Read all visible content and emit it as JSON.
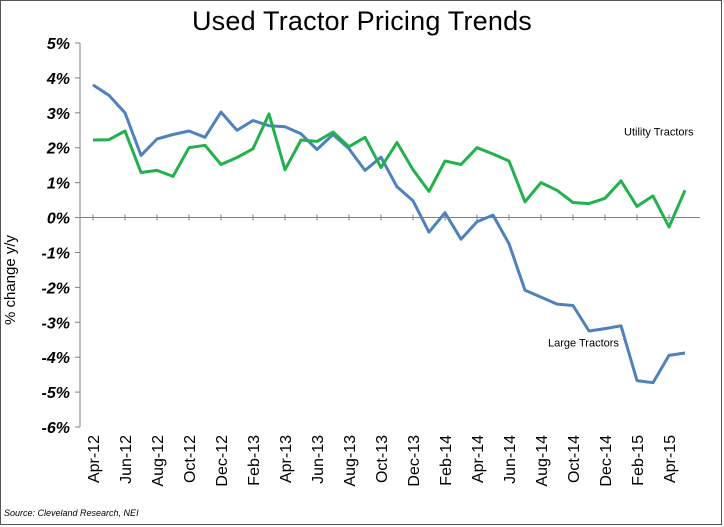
{
  "chart_data": {
    "type": "line",
    "title": "Used Tractor Pricing Trends",
    "ylabel": "% change y/y",
    "xlabel": "",
    "ylim": [
      -6,
      5
    ],
    "yticks": [
      "5%",
      "4%",
      "3%",
      "2%",
      "1%",
      "0%",
      "-1%",
      "-2%",
      "-3%",
      "-4%",
      "-5%",
      "-6%"
    ],
    "ytick_values": [
      5,
      4,
      3,
      2,
      1,
      0,
      -1,
      -2,
      -3,
      -4,
      -5,
      -6
    ],
    "x": [
      "Apr-12",
      "May-12",
      "Jun-12",
      "Jul-12",
      "Aug-12",
      "Sep-12",
      "Oct-12",
      "Nov-12",
      "Dec-12",
      "Jan-13",
      "Feb-13",
      "Mar-13",
      "Apr-13",
      "May-13",
      "Jun-13",
      "Jul-13",
      "Aug-13",
      "Sep-13",
      "Oct-13",
      "Nov-13",
      "Dec-13",
      "Jan-14",
      "Feb-14",
      "Mar-14",
      "Apr-14",
      "May-14",
      "Jun-14",
      "Jul-14",
      "Aug-14",
      "Sep-14",
      "Oct-14",
      "Nov-14",
      "Dec-14",
      "Jan-15",
      "Feb-15",
      "Mar-15",
      "Apr-15",
      "May-15"
    ],
    "xtick_labels": [
      "Apr-12",
      "Jun-12",
      "Aug-12",
      "Oct-12",
      "Dec-12",
      "Feb-13",
      "Apr-13",
      "Jun-13",
      "Aug-13",
      "Oct-13",
      "Dec-13",
      "Feb-14",
      "Apr-14",
      "Jun-14",
      "Aug-14",
      "Oct-14",
      "Dec-14",
      "Feb-15",
      "Apr-15"
    ],
    "series": [
      {
        "name": "Large Tractors",
        "color": "#4F81BD",
        "values": [
          3.8,
          3.5,
          3.0,
          1.78,
          2.25,
          2.38,
          2.48,
          2.3,
          3.02,
          2.5,
          2.78,
          2.63,
          2.6,
          2.4,
          1.95,
          2.38,
          1.97,
          1.35,
          1.73,
          0.88,
          0.48,
          -0.42,
          0.14,
          -0.62,
          -0.12,
          0.07,
          -0.75,
          -2.08,
          -2.28,
          -2.48,
          -2.52,
          -3.25,
          -3.18,
          -3.1,
          -4.67,
          -4.73,
          -3.95,
          -3.88
        ]
      },
      {
        "name": "Utility Tractors",
        "color": "#22B14C",
        "values": [
          2.22,
          2.23,
          2.48,
          1.29,
          1.35,
          1.18,
          2.0,
          2.07,
          1.52,
          1.72,
          1.97,
          2.97,
          1.37,
          2.22,
          2.18,
          2.45,
          2.03,
          2.3,
          1.43,
          2.15,
          1.37,
          0.75,
          1.62,
          1.52,
          2.0,
          1.82,
          1.62,
          0.45,
          1.0,
          0.78,
          0.43,
          0.4,
          0.55,
          1.05,
          0.32,
          0.62,
          -0.27,
          0.78
        ]
      }
    ],
    "legend": "inline labels",
    "grid": false
  },
  "source_note": "Source: Cleveland Research, NEI"
}
